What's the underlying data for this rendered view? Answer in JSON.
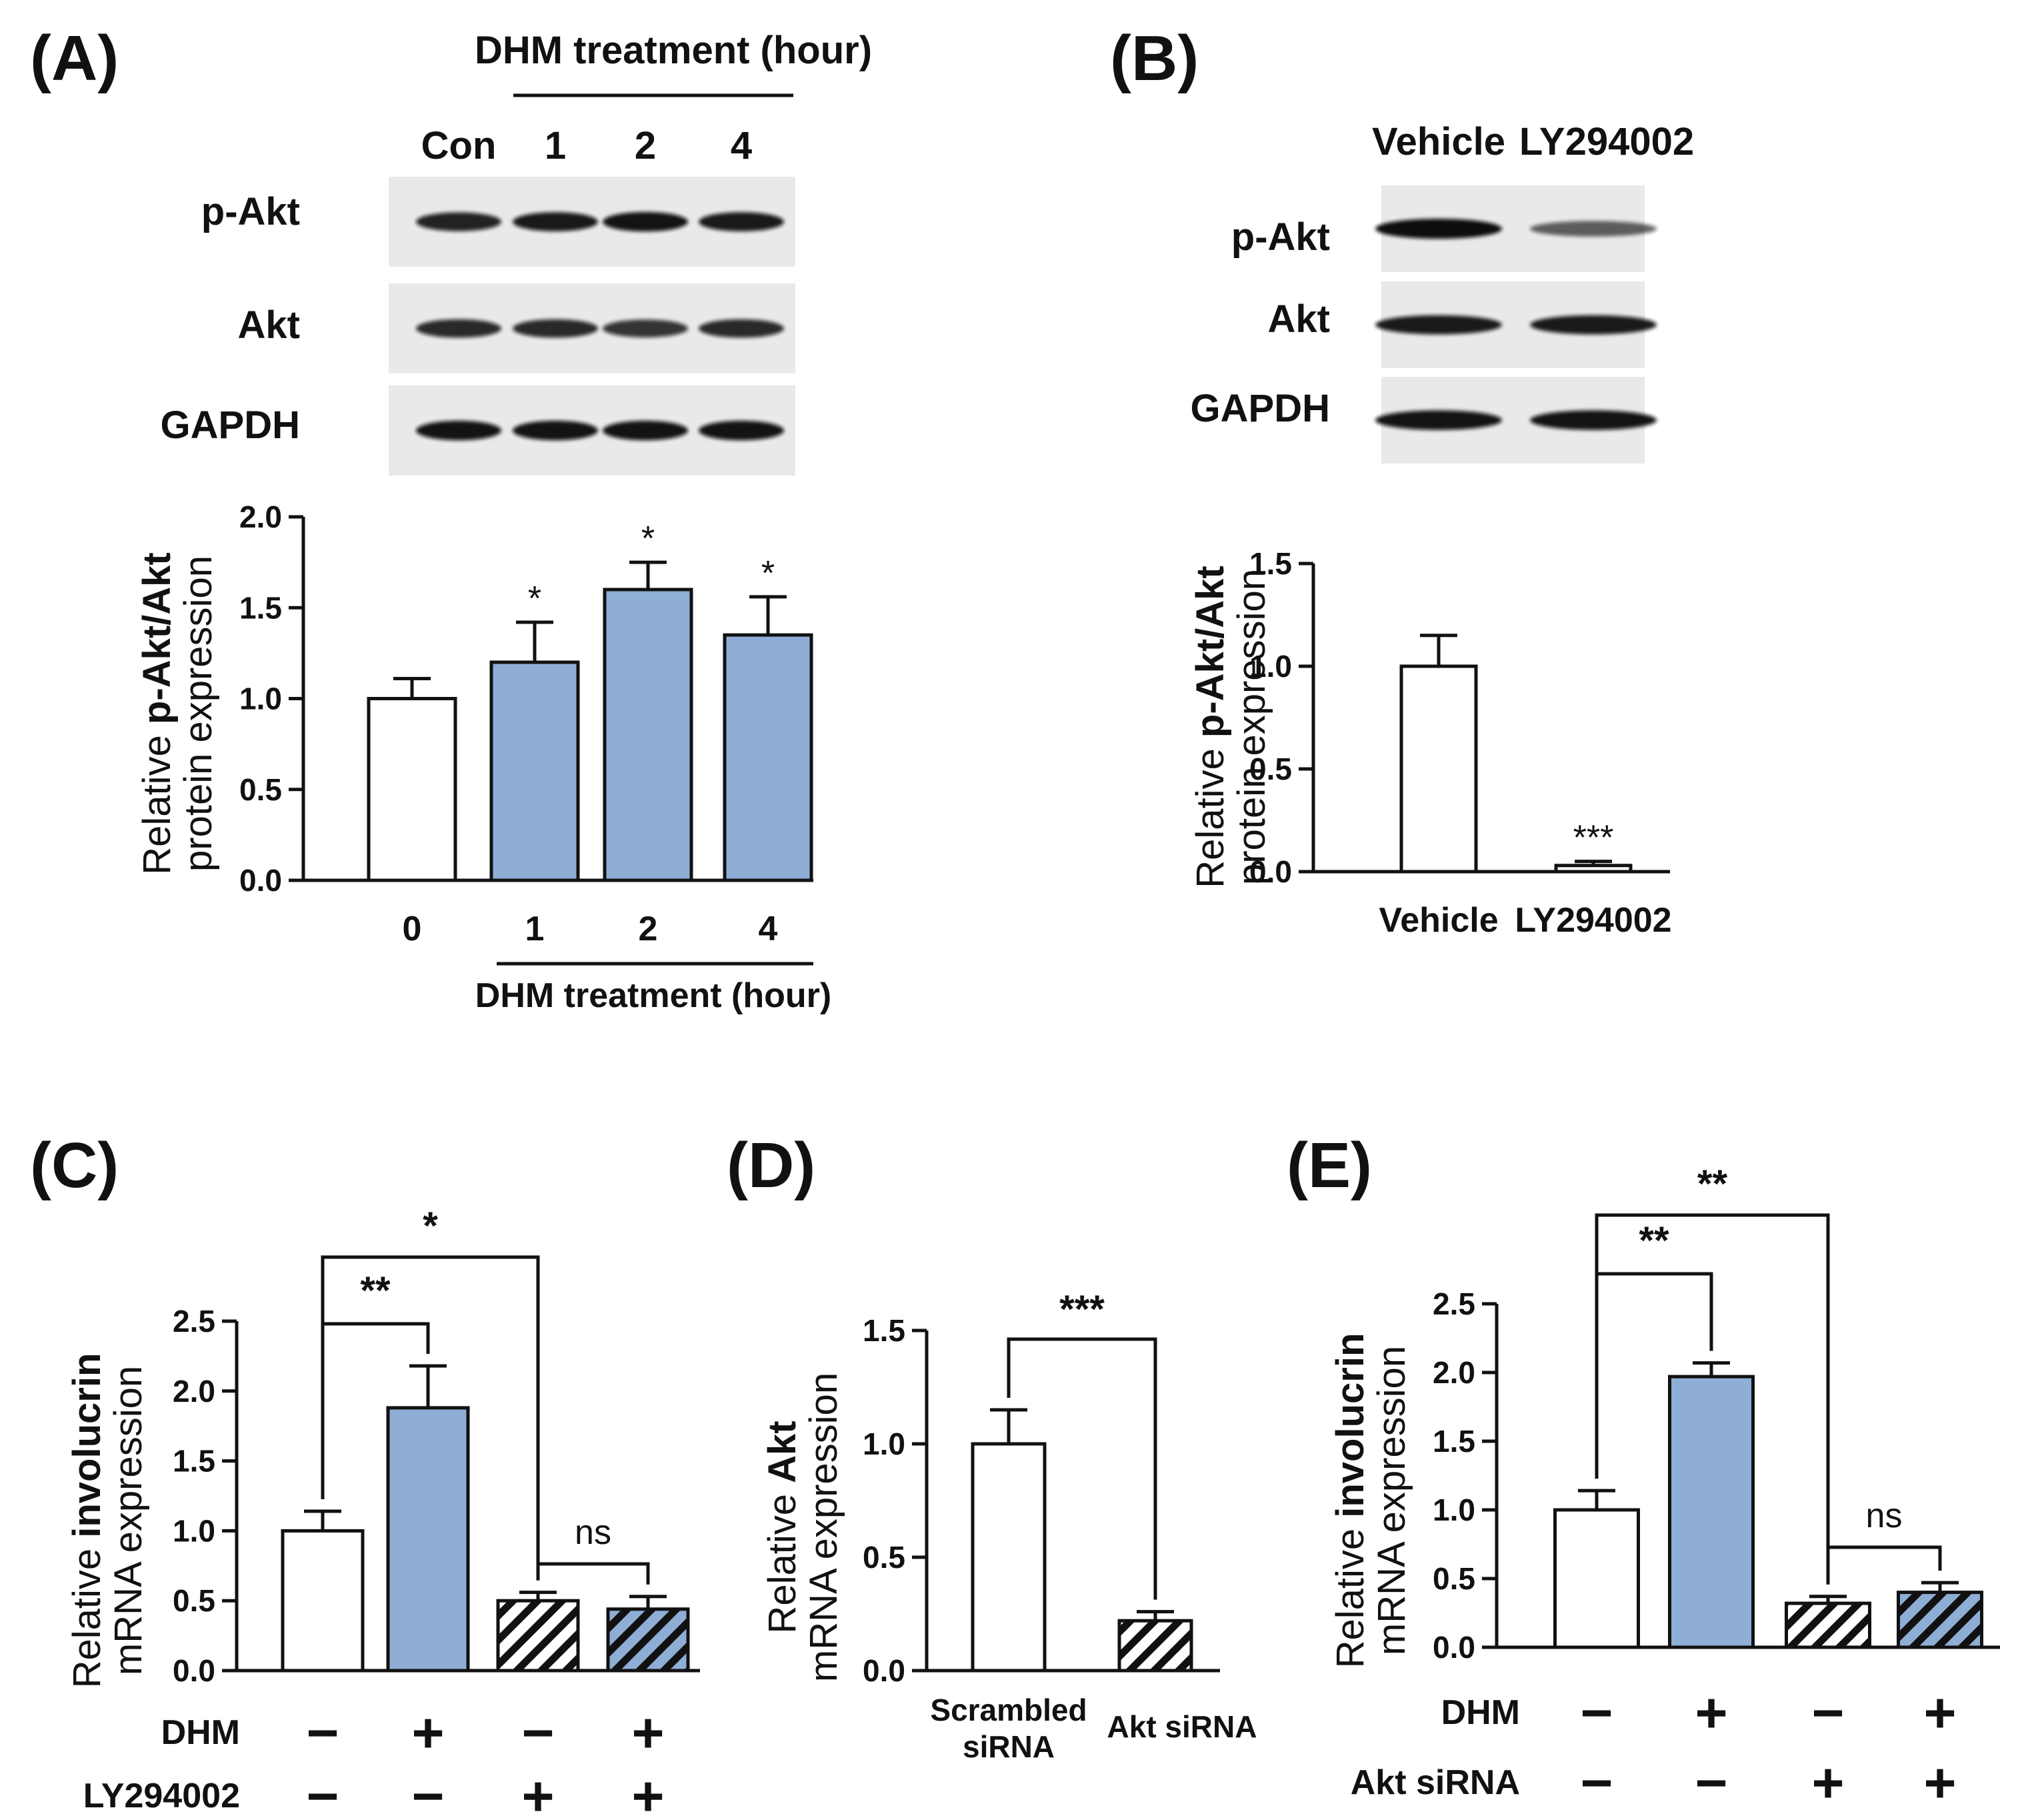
{
  "colors": {
    "treated": "#8eaed6",
    "control": "#ffffff",
    "stroke": "#111111",
    "blot_bg": "#e9e9e9",
    "band": "#111111"
  },
  "panels": {
    "A": {
      "label": "(A)",
      "blot_header": "DHM treatment (hour)",
      "lanes": [
        "Con",
        "1",
        "2",
        "4"
      ],
      "rows": [
        {
          "name": "p-Akt",
          "intensity": [
            0.85,
            0.9,
            0.95,
            0.9
          ]
        },
        {
          "name": "Akt",
          "intensity": [
            0.8,
            0.8,
            0.72,
            0.8
          ]
        },
        {
          "name": "GAPDH",
          "intensity": [
            0.95,
            0.95,
            0.95,
            0.95
          ]
        }
      ]
    },
    "B": {
      "label": "(B)",
      "lanes": [
        "Vehicle",
        "LY294002"
      ],
      "rows": [
        {
          "name": "p-Akt",
          "intensity": [
            1.0,
            0.45
          ]
        },
        {
          "name": "Akt",
          "intensity": [
            0.9,
            0.9
          ]
        },
        {
          "name": "GAPDH",
          "intensity": [
            0.95,
            0.95
          ]
        }
      ]
    },
    "C": {
      "label": "(C)"
    },
    "D": {
      "label": "(D)"
    },
    "E": {
      "label": "(E)"
    }
  },
  "chart_data": [
    {
      "panel": "A",
      "type": "bar",
      "categories": [
        "0",
        "1",
        "2",
        "4"
      ],
      "values": [
        1.0,
        1.2,
        1.6,
        1.35
      ],
      "errors": [
        0.11,
        0.22,
        0.15,
        0.21
      ],
      "fills": [
        "control",
        "treated",
        "treated",
        "treated"
      ],
      "significance": [
        "",
        "*",
        "*",
        "*"
      ],
      "ylabel_parts": [
        "Relative ",
        "p-Akt/Akt"
      ],
      "ylabel_line2": "protein expression",
      "xlabel": "DHM treatment (hour)",
      "ylim": [
        0,
        2.0
      ],
      "yticks": [
        "0.0",
        "0.5",
        "1.0",
        "1.5",
        "2.0"
      ]
    },
    {
      "panel": "B",
      "type": "bar",
      "categories": [
        "Vehicle",
        "LY294002"
      ],
      "values": [
        1.0,
        0.03
      ],
      "errors": [
        0.15,
        0.02
      ],
      "fills": [
        "control",
        "control"
      ],
      "significance": [
        "",
        "***"
      ],
      "ylabel_parts": [
        "Relative ",
        "p-Akt/Akt"
      ],
      "ylabel_line2": "protein expression",
      "ylim": [
        0,
        1.5
      ],
      "yticks": [
        "0.0",
        "0.5",
        "1.0",
        "1.5"
      ]
    },
    {
      "panel": "C",
      "type": "bar",
      "values": [
        1.0,
        1.88,
        0.5,
        0.44
      ],
      "errors": [
        0.14,
        0.3,
        0.06,
        0.09
      ],
      "fills": [
        "control",
        "treated",
        "hatch",
        "hatch-treated"
      ],
      "ylabel_parts": [
        "Relative ",
        "involucrin"
      ],
      "ylabel_line2": "mRNA expression",
      "ylim": [
        0,
        2.5
      ],
      "yticks": [
        "0.0",
        "0.5",
        "1.0",
        "1.5",
        "2.0",
        "2.5"
      ],
      "brackets": [
        {
          "from": 0,
          "to": 1,
          "label": "**"
        },
        {
          "from": 0,
          "to": 2,
          "label": "*"
        },
        {
          "from": 2,
          "to": 3,
          "label": "ns"
        }
      ],
      "conditions": [
        {
          "name": "DHM",
          "signs": [
            "−",
            "+",
            "−",
            "+"
          ]
        },
        {
          "name": "LY294002",
          "signs": [
            "−",
            "−",
            "+",
            "+"
          ]
        }
      ]
    },
    {
      "panel": "D",
      "type": "bar",
      "categories": [
        [
          "Scrambled",
          "siRNA"
        ],
        [
          "Akt siRNA"
        ]
      ],
      "values": [
        1.0,
        0.22
      ],
      "errors": [
        0.15,
        0.04
      ],
      "fills": [
        "control",
        "hatch"
      ],
      "ylabel_parts": [
        "Relative ",
        "Akt"
      ],
      "ylabel_line2": "mRNA expression",
      "ylim": [
        0,
        1.5
      ],
      "yticks": [
        "0.0",
        "0.5",
        "1.0",
        "1.5"
      ],
      "brackets": [
        {
          "from": 0,
          "to": 1,
          "label": "***"
        }
      ]
    },
    {
      "panel": "E",
      "type": "bar",
      "values": [
        1.0,
        1.97,
        0.32,
        0.4
      ],
      "errors": [
        0.14,
        0.1,
        0.05,
        0.07
      ],
      "fills": [
        "control",
        "treated",
        "hatch",
        "hatch-treated"
      ],
      "ylabel_parts": [
        "Relative ",
        "involucrin"
      ],
      "ylabel_line2": "mRNA expression",
      "ylim": [
        0,
        2.5
      ],
      "yticks": [
        "0.0",
        "0.5",
        "1.0",
        "1.5",
        "2.0",
        "2.5"
      ],
      "brackets": [
        {
          "from": 0,
          "to": 1,
          "label": "**"
        },
        {
          "from": 0,
          "to": 2,
          "label": "**"
        },
        {
          "from": 2,
          "to": 3,
          "label": "ns"
        }
      ],
      "conditions": [
        {
          "name": "DHM",
          "signs": [
            "−",
            "+",
            "−",
            "+"
          ]
        },
        {
          "name": "Akt siRNA",
          "signs": [
            "−",
            "−",
            "+",
            "+"
          ]
        }
      ]
    }
  ]
}
